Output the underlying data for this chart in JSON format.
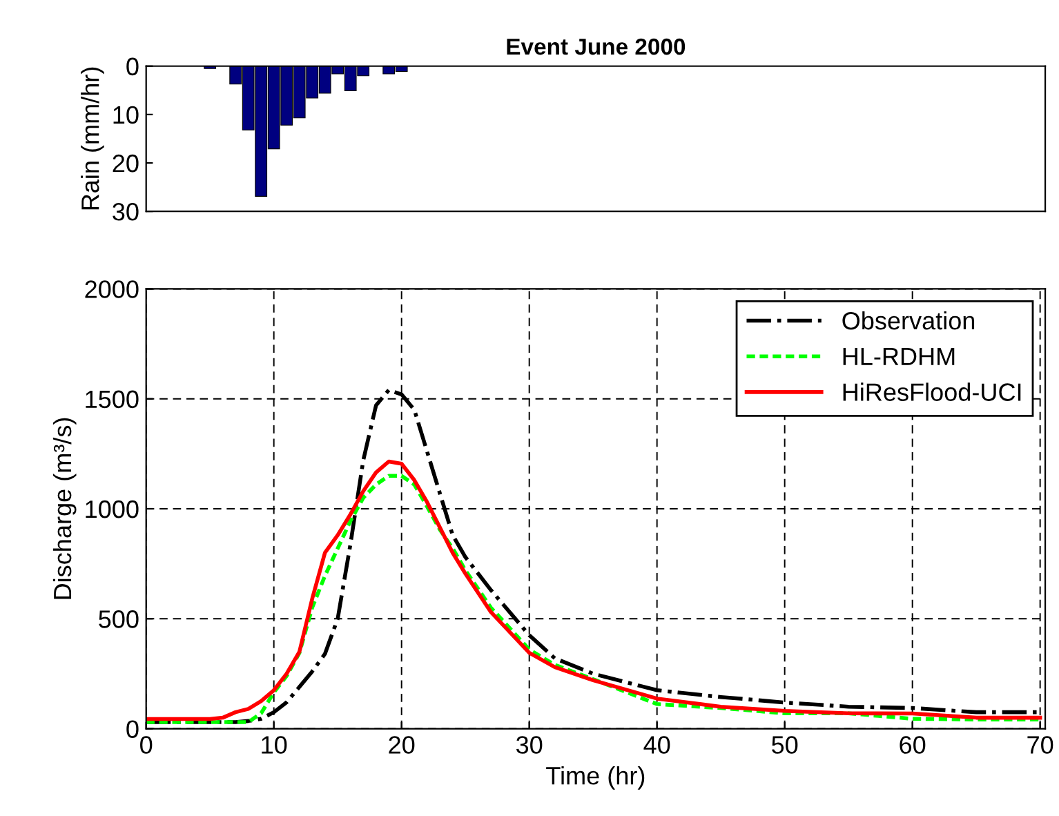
{
  "chart_data": [
    {
      "type": "bar",
      "title": "Event June 2000",
      "ylabel": "Rain (mm/hr)",
      "color": "#000080",
      "x": [
        5,
        7,
        8,
        9,
        10,
        11,
        12,
        13,
        14,
        15,
        16,
        17,
        19,
        20
      ],
      "values": [
        0.5,
        3.7,
        13.2,
        26.9,
        17.1,
        12.2,
        10.7,
        6.6,
        5.6,
        1.6,
        5.1,
        2,
        1.6,
        1.1
      ],
      "xlim": [
        0,
        70.4
      ],
      "ylim": [
        30,
        0
      ],
      "yticks": [
        0,
        10,
        20,
        30
      ],
      "tick_labels": "y",
      "grid": false
    },
    {
      "type": "line",
      "xlabel": "Time (hr)",
      "ylabel": "Discharge (m³/s)",
      "legend": "top right",
      "grid": true,
      "xlim": [
        0,
        70.4
      ],
      "xticks": [
        0,
        10,
        20,
        30,
        40,
        50,
        60,
        70
      ],
      "ylim": [
        0,
        2000
      ],
      "yticks": [
        0,
        500,
        1000,
        1500,
        2000
      ],
      "x": [
        0,
        5,
        6,
        7,
        8,
        9,
        10,
        11,
        12,
        13,
        14,
        15,
        16,
        17,
        18,
        19,
        20,
        21,
        22,
        23,
        24,
        25,
        27,
        30,
        32,
        35,
        40,
        45,
        50,
        55,
        60,
        65,
        70
      ],
      "series": [
        {
          "name": "Observation",
          "color": "#000000",
          "line_style": "dashdot",
          "values": [
            30,
            30,
            30,
            30,
            35,
            45,
            75,
            120,
            190,
            260,
            340,
            500,
            840,
            1220,
            1470,
            1540,
            1520,
            1450,
            1260,
            1070,
            880,
            780,
            630,
            425,
            320,
            250,
            175,
            144,
            119,
            100,
            94,
            75,
            75
          ]
        },
        {
          "name": "HL-RDHM",
          "color": "#00ff00",
          "line_style": "dashed",
          "values": [
            30,
            30,
            30,
            30,
            30,
            70,
            165,
            240,
            345,
            550,
            695,
            820,
            945,
            1050,
            1110,
            1150,
            1150,
            1110,
            1010,
            905,
            820,
            720,
            550,
            360,
            290,
            225,
            112,
            94,
            70,
            70,
            45,
            42,
            42
          ]
        },
        {
          "name": "HiResFlood-UCI",
          "color": "#ff0000",
          "line_style": "solid",
          "values": [
            44,
            44,
            50,
            75,
            90,
            125,
            175,
            250,
            350,
            590,
            800,
            880,
            975,
            1080,
            1165,
            1215,
            1205,
            1130,
            1030,
            915,
            800,
            705,
            530,
            345,
            280,
            220,
            137,
            100,
            81,
            70,
            69,
            50,
            50
          ]
        }
      ]
    }
  ]
}
